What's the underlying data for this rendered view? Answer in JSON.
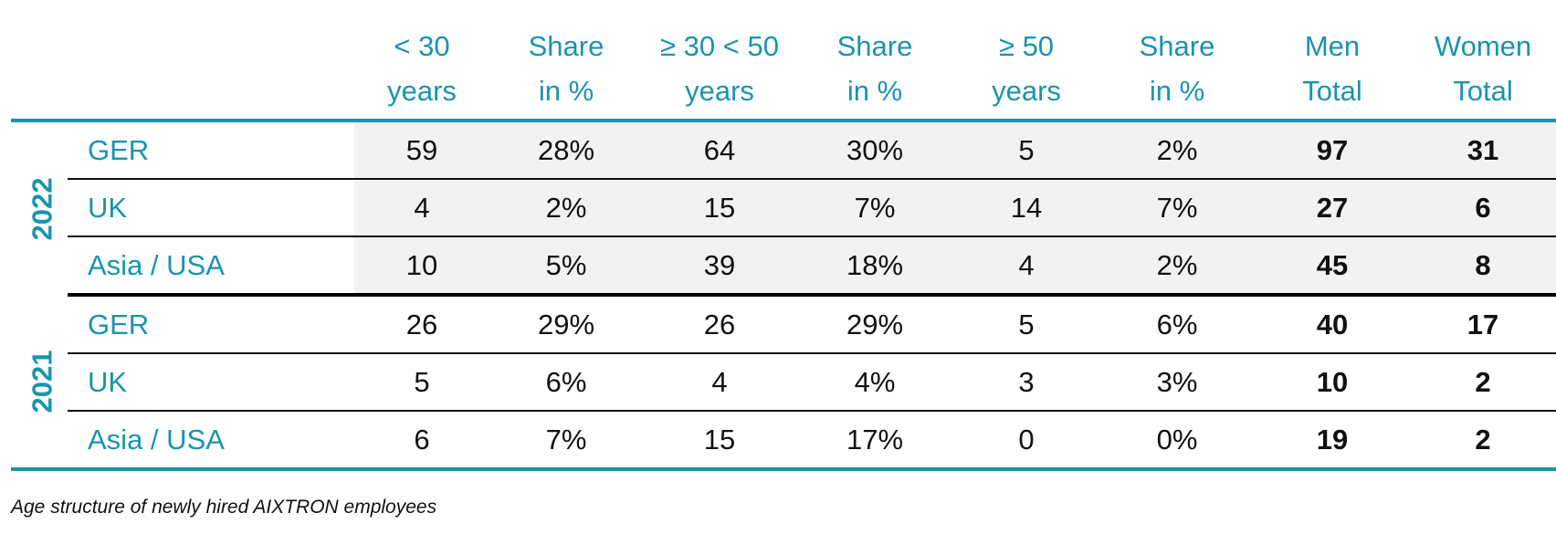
{
  "header": {
    "columns": [
      {
        "line1": "< 30",
        "line2": "years"
      },
      {
        "line1": "Share",
        "line2": "in %"
      },
      {
        "line1": "≥ 30 < 50",
        "line2": "years"
      },
      {
        "line1": "Share",
        "line2": "in %"
      },
      {
        "line1": "≥ 50",
        "line2": "years"
      },
      {
        "line1": "Share",
        "line2": "in %"
      },
      {
        "line1": "Men",
        "line2": "Total"
      },
      {
        "line1": "Women",
        "line2": "Total"
      }
    ]
  },
  "groups": [
    {
      "year": "2022",
      "rows": [
        {
          "region": "GER",
          "cells": [
            "59",
            "28%",
            "64",
            "30%",
            "5",
            "2%",
            "97",
            "31"
          ]
        },
        {
          "region": "UK",
          "cells": [
            "4",
            "2%",
            "15",
            "7%",
            "14",
            "7%",
            "27",
            "6"
          ]
        },
        {
          "region": "Asia / USA",
          "cells": [
            "10",
            "5%",
            "39",
            "18%",
            "4",
            "2%",
            "45",
            "8"
          ]
        }
      ]
    },
    {
      "year": "2021",
      "rows": [
        {
          "region": "GER",
          "cells": [
            "26",
            "29%",
            "26",
            "29%",
            "5",
            "6%",
            "40",
            "17"
          ]
        },
        {
          "region": "UK",
          "cells": [
            "5",
            "6%",
            "4",
            "4%",
            "3",
            "3%",
            "10",
            "2"
          ]
        },
        {
          "region": "Asia / USA",
          "cells": [
            "6",
            "7%",
            "15",
            "17%",
            "0",
            "0%",
            "19",
            "2"
          ]
        }
      ]
    }
  ],
  "caption": "Age structure of newly hired AIXTRON employees",
  "colors": {
    "accent": "#1a94ad",
    "shaded_row": "#f2f2f2",
    "text": "#111111"
  }
}
